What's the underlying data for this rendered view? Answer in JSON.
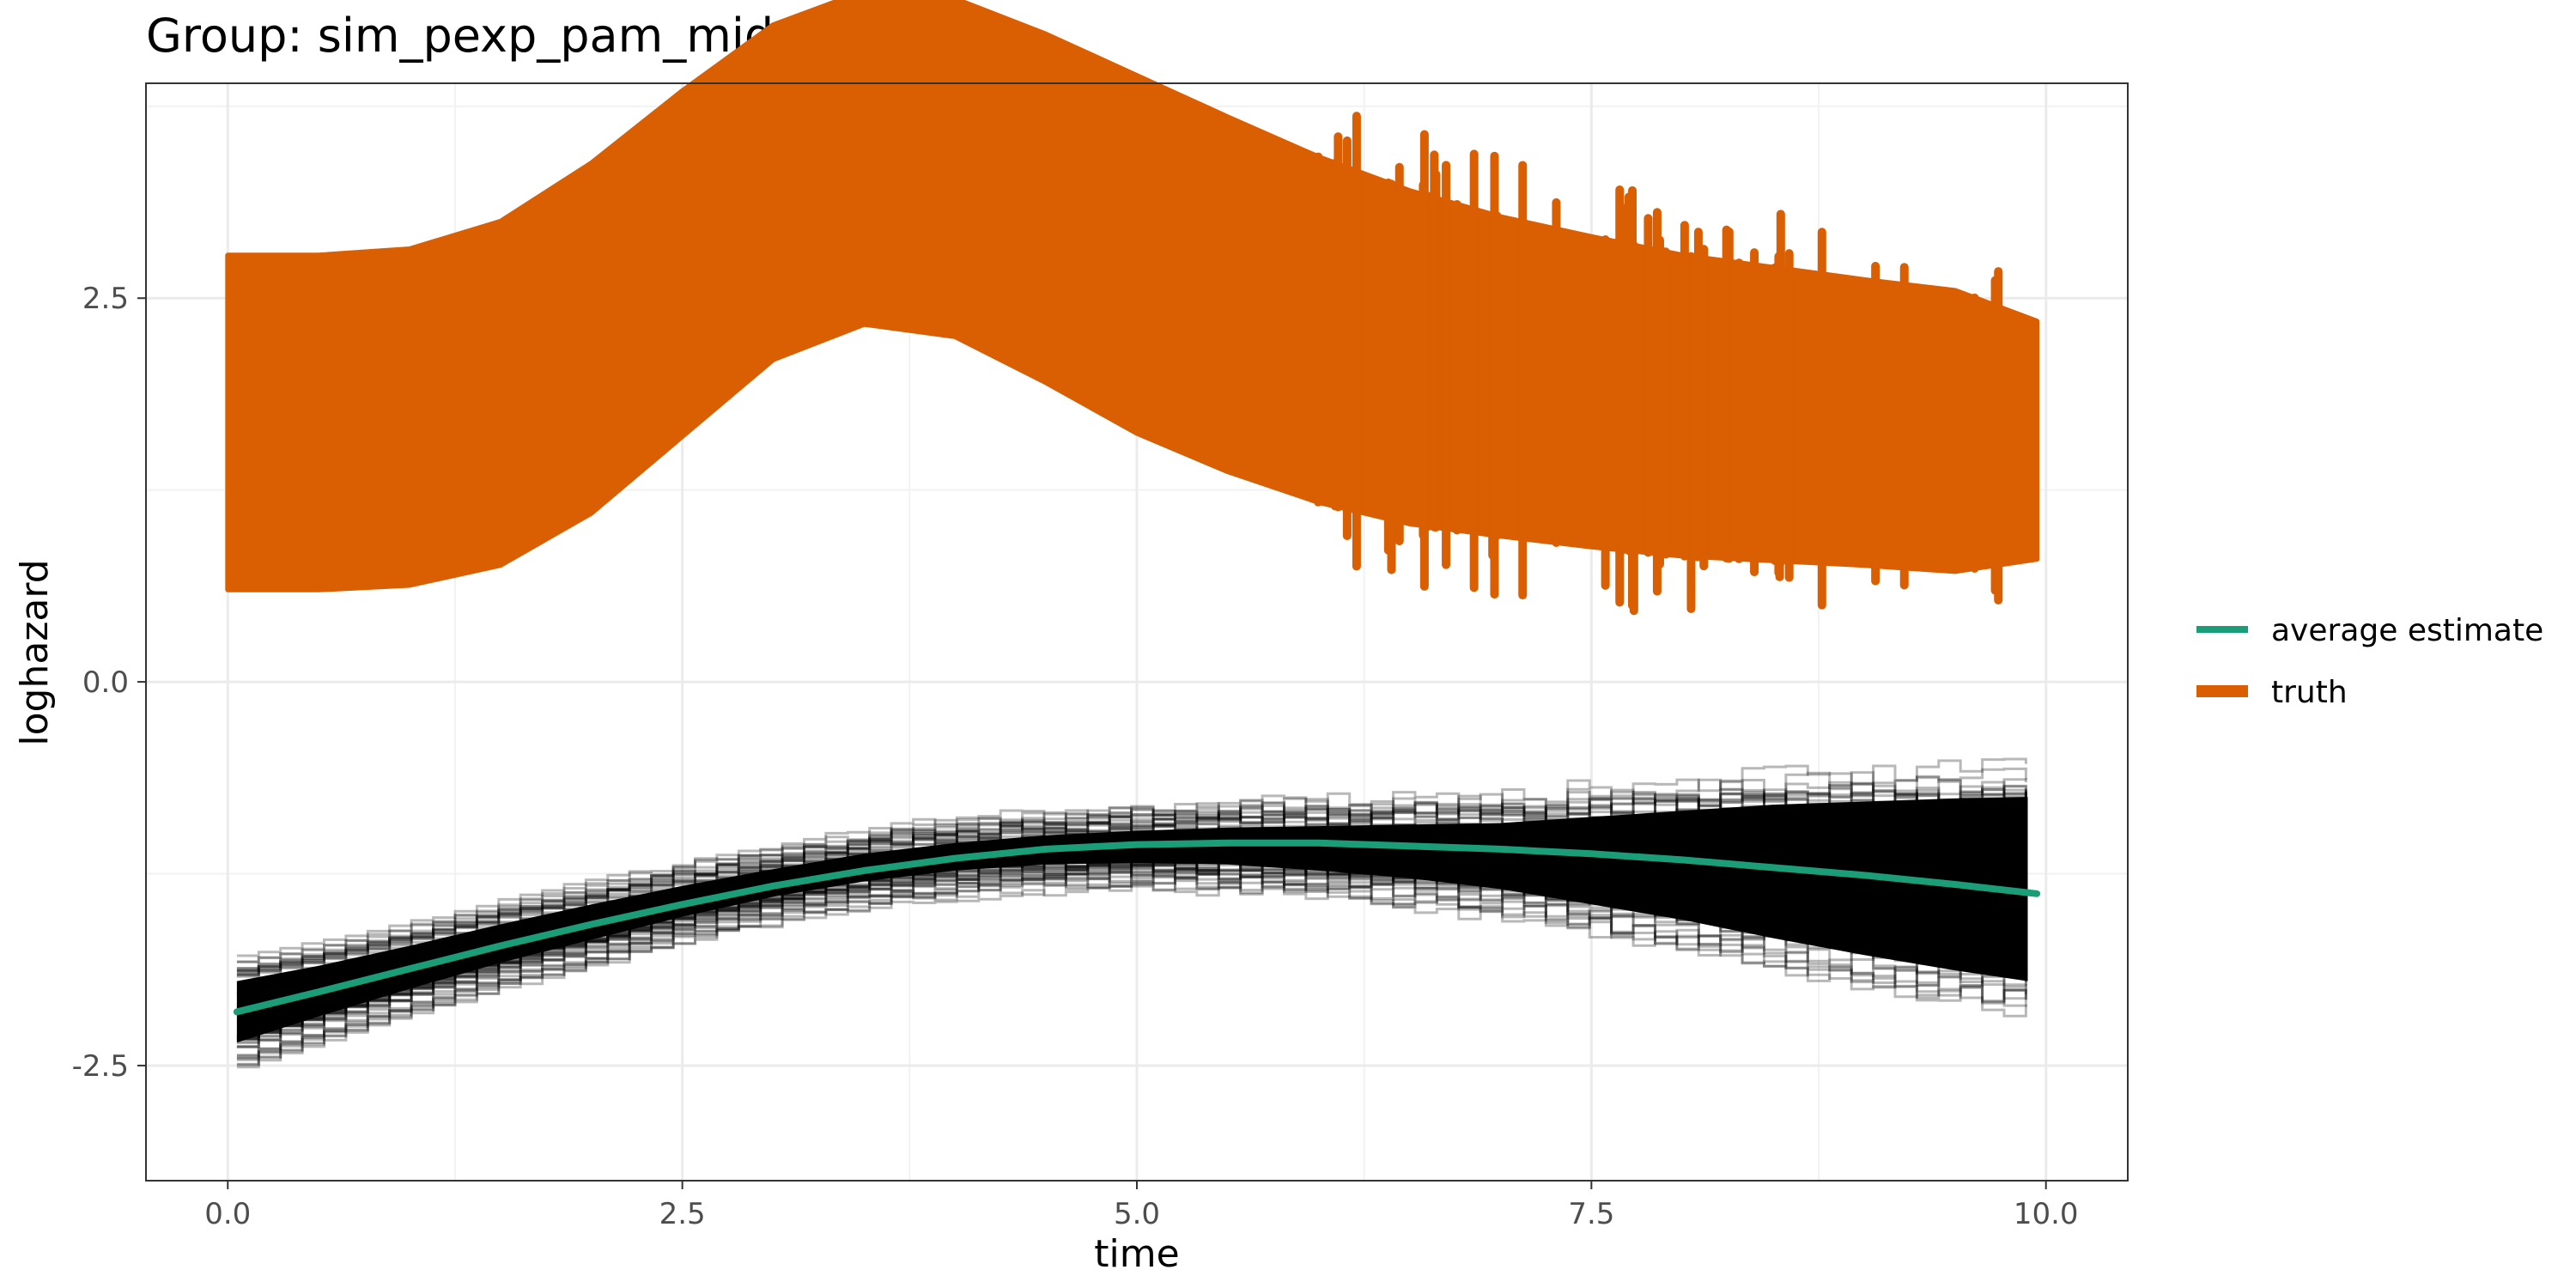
{
  "chart_data": {
    "type": "line",
    "title": "Group: sim_pexp_pam_mid_end_beta",
    "xlabel": "time",
    "ylabel": "loghazard",
    "xlim": [
      -0.45,
      10.45
    ],
    "ylim": [
      -3.25,
      3.9
    ],
    "x_ticks": [
      0.0,
      2.5,
      5.0,
      7.5,
      10.0
    ],
    "x_tick_labels": [
      "0.0",
      "2.5",
      "5.0",
      "7.5",
      "10.0"
    ],
    "y_ticks": [
      -2.5,
      0.0,
      2.5
    ],
    "y_tick_labels": [
      "-2.5",
      "0.0",
      "2.5"
    ],
    "grid": true,
    "legend_position": "right",
    "series": [
      {
        "name": "average estimate",
        "color": "#1B9E77",
        "x": [
          0.05,
          0.5,
          1.0,
          1.5,
          2.0,
          2.5,
          3.0,
          3.5,
          4.0,
          4.5,
          5.0,
          5.5,
          6.0,
          6.5,
          7.0,
          7.5,
          8.0,
          8.5,
          9.0,
          9.5,
          9.95
        ],
        "y": [
          -2.15,
          -2.02,
          -1.87,
          -1.72,
          -1.58,
          -1.45,
          -1.33,
          -1.23,
          -1.15,
          -1.09,
          -1.06,
          -1.05,
          -1.05,
          -1.07,
          -1.09,
          -1.12,
          -1.16,
          -1.21,
          -1.26,
          -1.32,
          -1.38
        ]
      },
      {
        "name": "truth",
        "color": "#D95F02",
        "x": [
          0.0,
          0.5,
          1.0,
          1.5,
          2.0,
          2.5,
          3.0,
          3.5,
          4.0,
          4.5,
          5.0,
          5.5,
          6.0,
          6.5,
          7.0,
          7.5,
          8.0,
          8.5,
          9.0,
          9.5,
          9.95
        ],
        "y_lower": [
          0.6,
          0.6,
          0.63,
          0.76,
          1.1,
          1.6,
          2.1,
          2.33,
          2.25,
          1.95,
          1.62,
          1.37,
          1.17,
          1.03,
          0.95,
          0.88,
          0.82,
          0.79,
          0.76,
          0.72,
          0.8
        ],
        "y_upper": [
          2.78,
          2.78,
          2.82,
          3.0,
          3.38,
          3.85,
          4.28,
          4.5,
          4.45,
          4.22,
          3.95,
          3.68,
          3.42,
          3.2,
          3.03,
          2.9,
          2.78,
          2.7,
          2.62,
          2.55,
          2.35
        ]
      },
      {
        "name": "",
        "color": "#000000",
        "x": [
          0.05,
          0.5,
          1.0,
          1.5,
          2.0,
          2.5,
          3.0,
          3.5,
          4.0,
          4.5,
          5.0,
          5.5,
          6.0,
          6.5,
          7.0,
          7.5,
          8.0,
          8.5,
          9.0,
          9.5,
          9.9
        ],
        "y_lower": [
          -2.45,
          -2.28,
          -2.1,
          -1.93,
          -1.78,
          -1.63,
          -1.5,
          -1.4,
          -1.33,
          -1.29,
          -1.28,
          -1.29,
          -1.33,
          -1.38,
          -1.45,
          -1.55,
          -1.65,
          -1.77,
          -1.88,
          -1.98,
          -2.05
        ],
        "y_upper": [
          -1.85,
          -1.75,
          -1.62,
          -1.48,
          -1.35,
          -1.23,
          -1.12,
          -1.02,
          -0.95,
          -0.9,
          -0.87,
          -0.85,
          -0.84,
          -0.83,
          -0.82,
          -0.78,
          -0.74,
          -0.7,
          -0.68,
          -0.66,
          -0.65
        ]
      }
    ],
    "legend": [
      {
        "label": "average estimate",
        "color": "#1B9E77"
      },
      {
        "label": "truth",
        "color": "#D95F02"
      }
    ]
  }
}
